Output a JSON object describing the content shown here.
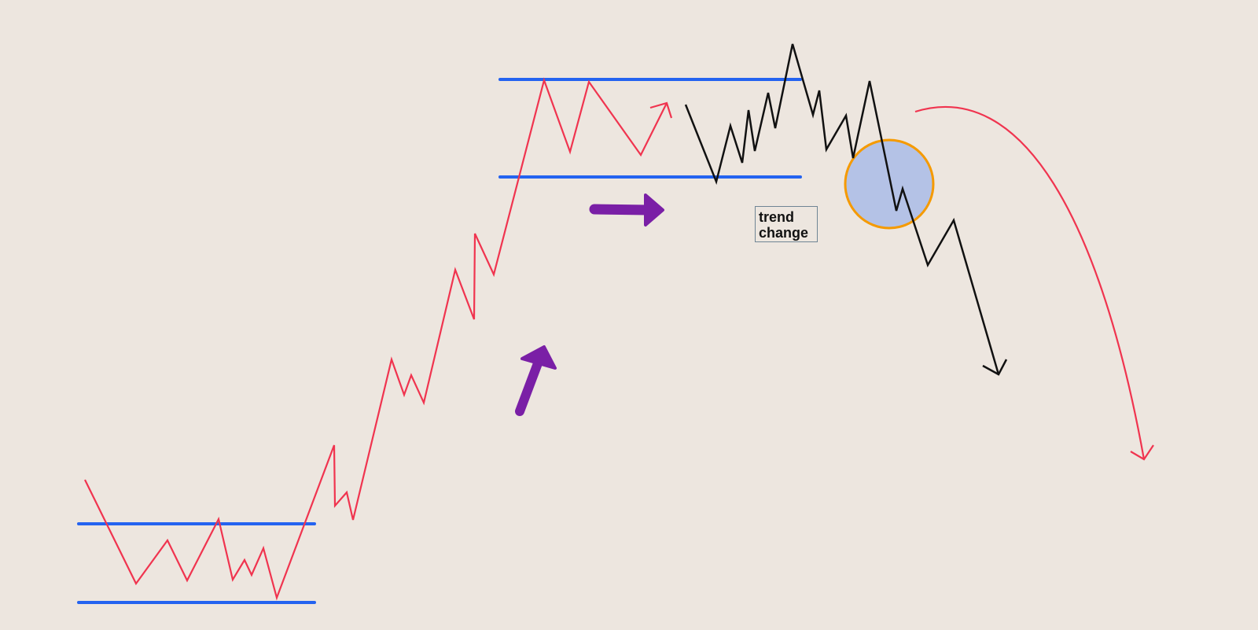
{
  "annotation": {
    "text": "trend\nchange"
  },
  "colors": {
    "background": "#ede6df",
    "price_path_up": "#f0344f",
    "price_path_down": "#111111",
    "support_resistance": "#2463f0",
    "trend_arrow": "#7a1fa6",
    "highlight_fill": "#b4c2e6",
    "highlight_stroke": "#f59a00"
  },
  "icons": [
    "arrow-up-right-icon",
    "arrow-right-icon",
    "curved-arrow-down-icon"
  ]
}
